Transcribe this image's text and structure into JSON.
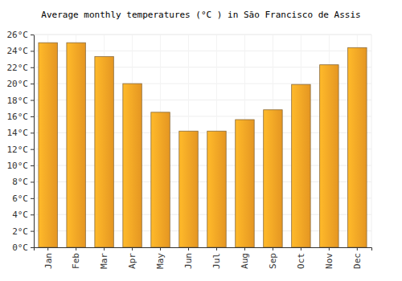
{
  "chart_data": {
    "type": "bar",
    "title": "Average monthly temperatures (°C ) in São Francisco de Assis",
    "categories": [
      "Jan",
      "Feb",
      "Mar",
      "Apr",
      "May",
      "Jun",
      "Jul",
      "Aug",
      "Sep",
      "Oct",
      "Nov",
      "Dec"
    ],
    "values": [
      25.0,
      25.0,
      23.3,
      20.0,
      16.5,
      14.2,
      14.2,
      15.6,
      16.8,
      19.9,
      22.3,
      24.4
    ],
    "color": "#ffa726",
    "ylim": [
      0,
      26
    ],
    "yticks": [
      {
        "value": 0,
        "label": "0°C"
      },
      {
        "value": 2,
        "label": "2°C"
      },
      {
        "value": 4,
        "label": "4°C"
      },
      {
        "value": 6,
        "label": "6°C"
      },
      {
        "value": 8,
        "label": "8°C"
      },
      {
        "value": 10,
        "label": "10°C"
      },
      {
        "value": 12,
        "label": "12°C"
      },
      {
        "value": 14,
        "label": "14°C"
      },
      {
        "value": 16,
        "label": "16°C"
      },
      {
        "value": 18,
        "label": "18°C"
      },
      {
        "value": 20,
        "label": "20°C"
      },
      {
        "value": 22,
        "label": "22°C"
      },
      {
        "value": 24,
        "label": "24°C"
      },
      {
        "value": 26,
        "label": "26°C"
      }
    ],
    "grid": true
  }
}
